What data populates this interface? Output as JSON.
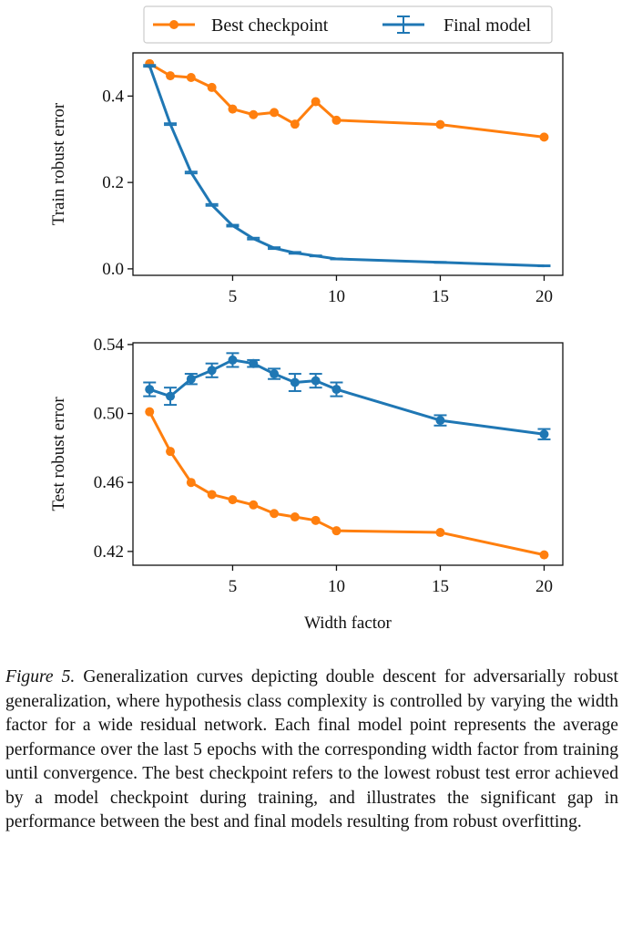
{
  "legend": {
    "items": [
      {
        "label": "Best checkpoint",
        "color": "#ff7f0e",
        "marker": "circle"
      },
      {
        "label": "Final model",
        "color": "#1f77b4",
        "marker": "errorbar"
      }
    ],
    "placement": "top-center"
  },
  "chart_data": [
    {
      "type": "line",
      "title": "",
      "xlabel": "",
      "ylabel": "Train robust error",
      "xlim": [
        0.2,
        20.9
      ],
      "ylim": [
        -0.015,
        0.5
      ],
      "xticks": [
        5,
        10,
        15,
        20
      ],
      "xtick_labels": [
        "5",
        "10",
        "15",
        "20"
      ],
      "yticks": [
        0.0,
        0.2,
        0.4
      ],
      "ytick_labels": [
        "0.0",
        "0.2",
        "0.4"
      ],
      "grid": false,
      "series": [
        {
          "name": "Best checkpoint",
          "color": "#ff7f0e",
          "marker": "circle",
          "x": [
            1,
            2,
            3,
            4,
            5,
            6,
            7,
            8,
            9,
            10,
            15,
            20
          ],
          "y": [
            0.475,
            0.447,
            0.443,
            0.42,
            0.37,
            0.357,
            0.362,
            0.335,
            0.387,
            0.344,
            0.334,
            0.305
          ]
        },
        {
          "name": "Final model",
          "color": "#1f77b4",
          "marker": "errorbar",
          "x": [
            1,
            2,
            3,
            4,
            5,
            6,
            7,
            8,
            9,
            10,
            15,
            20
          ],
          "y": [
            0.47,
            0.335,
            0.223,
            0.148,
            0.1,
            0.07,
            0.048,
            0.037,
            0.03,
            0.023,
            0.015,
            0.007
          ],
          "err": [
            0.002,
            0.002,
            0.002,
            0.002,
            0.002,
            0.002,
            0.002,
            0.002,
            0.001,
            0.001,
            0.001,
            0.001
          ]
        }
      ]
    },
    {
      "type": "line",
      "title": "",
      "xlabel": "Width factor",
      "ylabel": "Test robust error",
      "xlim": [
        0.2,
        20.9
      ],
      "ylim": [
        0.412,
        0.541
      ],
      "xticks": [
        5,
        10,
        15,
        20
      ],
      "xtick_labels": [
        "5",
        "10",
        "15",
        "20"
      ],
      "yticks": [
        0.42,
        0.46,
        0.5,
        0.54
      ],
      "ytick_labels": [
        "0.42",
        "0.46",
        "0.50",
        "0.54"
      ],
      "grid": false,
      "series": [
        {
          "name": "Best checkpoint",
          "color": "#ff7f0e",
          "marker": "circle",
          "x": [
            1,
            2,
            3,
            4,
            5,
            6,
            7,
            8,
            9,
            10,
            15,
            20
          ],
          "y": [
            0.501,
            0.478,
            0.46,
            0.453,
            0.45,
            0.447,
            0.442,
            0.44,
            0.438,
            0.432,
            0.431,
            0.418
          ]
        },
        {
          "name": "Final model",
          "color": "#1f77b4",
          "marker": "errorbar",
          "x": [
            1,
            2,
            3,
            4,
            5,
            6,
            7,
            8,
            9,
            10,
            15,
            20
          ],
          "y": [
            0.514,
            0.51,
            0.52,
            0.525,
            0.531,
            0.529,
            0.523,
            0.518,
            0.519,
            0.514,
            0.496,
            0.488
          ],
          "err": [
            0.004,
            0.005,
            0.003,
            0.004,
            0.004,
            0.002,
            0.003,
            0.005,
            0.004,
            0.004,
            0.003,
            0.003
          ]
        }
      ]
    }
  ],
  "caption": {
    "label": "Figure 5.",
    "text": "Generalization curves depicting double descent for adversarially robust generalization, where hypothesis class complexity is controlled by varying the width factor for a wide residual network. Each final model point represents the average performance over the last 5 epochs with the corresponding width factor from training until convergence. The best checkpoint refers to the lowest robust test error achieved by a model checkpoint during training, and illustrates the significant gap in performance between the best and final models resulting from robust overfitting."
  }
}
